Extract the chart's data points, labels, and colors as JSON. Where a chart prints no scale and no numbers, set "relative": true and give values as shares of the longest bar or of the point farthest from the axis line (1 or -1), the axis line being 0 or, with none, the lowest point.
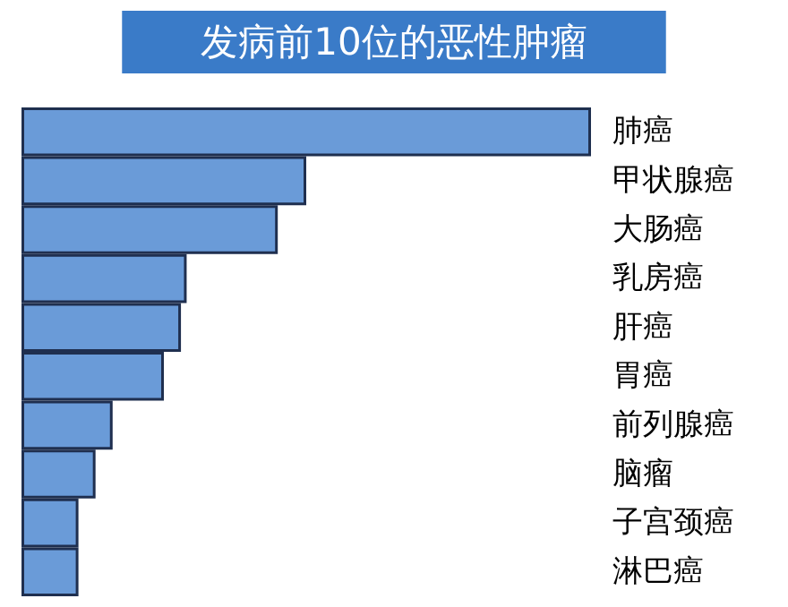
{
  "chart_data": {
    "type": "bar",
    "orientation": "horizontal",
    "relative": true,
    "title": "发病前10位的恶性肿瘤",
    "categories": [
      "肺癌",
      "甲状腺癌",
      "大肠癌",
      "乳房癌",
      "肝癌",
      "胃癌",
      "前列腺癌",
      "脑瘤",
      "子宫颈癌",
      "淋巴癌"
    ],
    "values": [
      1,
      0.5,
      0.45,
      0.29,
      0.28,
      0.25,
      0.16,
      0.13,
      0.1,
      0.1
    ],
    "color": "#6a9bd8"
  }
}
